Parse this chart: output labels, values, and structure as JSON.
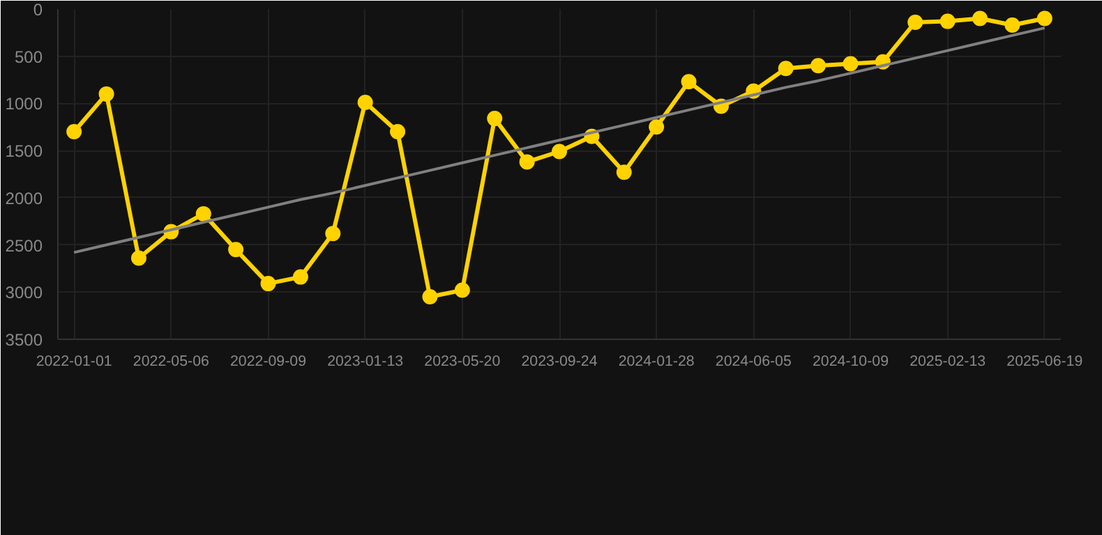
{
  "chart_data": {
    "type": "line",
    "categories": [
      "2022-01-01",
      null,
      null,
      "2022-05-06",
      null,
      null,
      "2022-09-09",
      null,
      null,
      "2023-01-13",
      null,
      null,
      "2023-05-20",
      null,
      null,
      "2023-09-24",
      null,
      null,
      "2024-01-28",
      null,
      null,
      "2024-06-05",
      null,
      null,
      "2024-10-09",
      null,
      null,
      "2025-02-13",
      null,
      null,
      "2025-06-19"
    ],
    "series": [
      {
        "color": "#ffd200",
        "marker": "circle",
        "values": [
          1300,
          900,
          2640,
          2360,
          2170,
          2550,
          2910,
          2840,
          2380,
          990,
          1300,
          3050,
          2980,
          1160,
          1620,
          1510,
          1350,
          1730,
          1250,
          770,
          1030,
          870,
          630,
          600,
          580,
          560,
          140,
          130,
          100,
          170,
          100
        ]
      },
      {
        "color": "#808080",
        "marker": "none",
        "values": [
          2580,
          2500,
          2420,
          2340,
          2260,
          2180,
          2100,
          2020,
          1950,
          1870,
          1790,
          1710,
          1630,
          1550,
          1470,
          1390,
          1310,
          1230,
          1150,
          1070,
          990,
          910,
          830,
          760,
          680,
          600,
          520,
          440,
          360,
          280,
          200
        ]
      }
    ],
    "ylim": [
      3500,
      0
    ],
    "yticks": [
      0,
      500,
      1000,
      1500,
      2000,
      2500,
      3000,
      3500
    ],
    "grid": true,
    "line_style": "solid"
  }
}
